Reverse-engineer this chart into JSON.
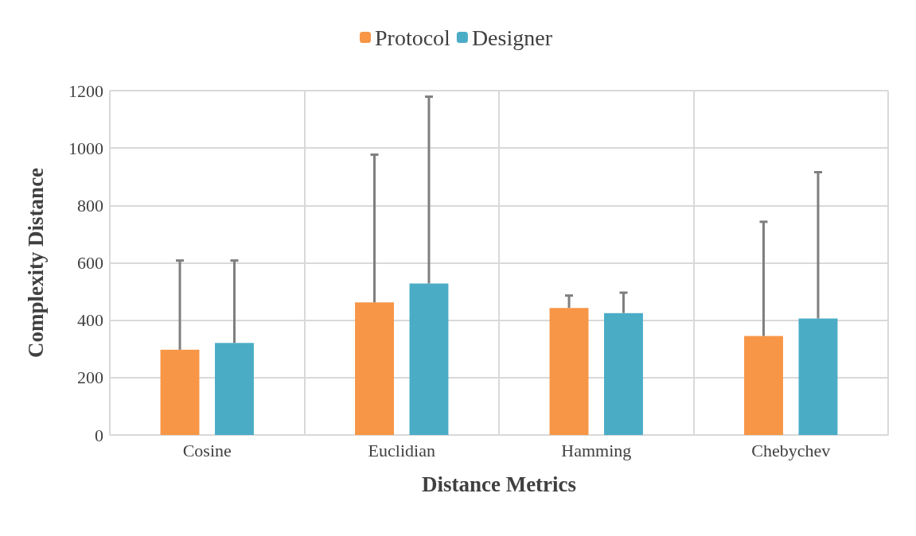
{
  "chart_data": {
    "type": "bar",
    "xlabel": "Distance Metrics",
    "ylabel": "Complexity Distance",
    "categories": [
      "Cosine",
      "Euclidian",
      "Hamming",
      "Chebychev"
    ],
    "series": [
      {
        "name": "Protocol",
        "color": "#f79646",
        "values": [
          297,
          462,
          443,
          345
        ],
        "errors": [
          [
            297,
            608
          ],
          [
            462,
            977
          ],
          [
            443,
            486
          ],
          [
            345,
            743
          ]
        ]
      },
      {
        "name": "Designer",
        "color": "#4bacc6",
        "values": [
          321,
          528,
          425,
          406
        ],
        "errors": [
          [
            321,
            608
          ],
          [
            528,
            1179
          ],
          [
            425,
            496
          ],
          [
            406,
            916
          ]
        ]
      }
    ],
    "ylim": [
      0,
      1200
    ],
    "yticks": [
      0,
      200,
      400,
      600,
      800,
      1000,
      1200
    ],
    "grid": true,
    "legend": "top"
  }
}
